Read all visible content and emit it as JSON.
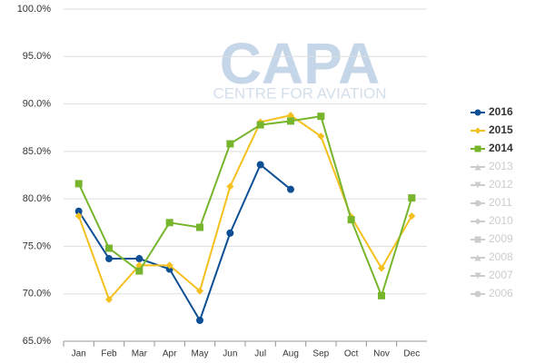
{
  "chart_data": {
    "type": "line",
    "watermark": {
      "title": "CAPA",
      "subtitle": "CENTRE FOR AVIATION"
    },
    "categories": [
      "Jan",
      "Feb",
      "Mar",
      "Apr",
      "May",
      "Jun",
      "Jul",
      "Aug",
      "Sep",
      "Oct",
      "Nov",
      "Dec"
    ],
    "ylim": [
      65,
      100
    ],
    "yticks": [
      {
        "value": 65,
        "label": "65.0%"
      },
      {
        "value": 70,
        "label": "70.0%"
      },
      {
        "value": 75,
        "label": "75.0%"
      },
      {
        "value": 80,
        "label": "80.0%"
      },
      {
        "value": 85,
        "label": "85.0%"
      },
      {
        "value": 90,
        "label": "90.0%"
      },
      {
        "value": 95,
        "label": "95.0%"
      },
      {
        "value": 100,
        "label": "100.0%"
      }
    ],
    "grid": true,
    "legend": "right",
    "series": [
      {
        "name": "2016",
        "color": "#0d4f94",
        "marker": "circle",
        "visible": true,
        "values": [
          78.7,
          73.7,
          73.7,
          72.6,
          67.2,
          76.4,
          83.6,
          81.0,
          null,
          null,
          null,
          null
        ]
      },
      {
        "name": "2015",
        "color": "#f5c01d",
        "marker": "diamond",
        "visible": true,
        "values": [
          78.2,
          69.4,
          73.0,
          73.0,
          70.3,
          81.3,
          88.1,
          88.8,
          86.6,
          78.1,
          72.7,
          78.2
        ]
      },
      {
        "name": "2014",
        "color": "#76b52c",
        "marker": "square",
        "visible": true,
        "values": [
          81.6,
          74.8,
          72.4,
          77.5,
          77.0,
          85.8,
          87.8,
          88.2,
          88.7,
          77.8,
          69.8,
          80.1
        ]
      },
      {
        "name": "2013",
        "color": "#cccccc",
        "marker": "triangle",
        "visible": false,
        "values": [
          null,
          null,
          null,
          null,
          null,
          null,
          null,
          null,
          null,
          null,
          null,
          null
        ]
      },
      {
        "name": "2012",
        "color": "#cccccc",
        "marker": "triangle-down",
        "visible": false,
        "values": [
          null,
          null,
          null,
          null,
          null,
          null,
          null,
          null,
          null,
          null,
          null,
          null
        ]
      },
      {
        "name": "2011",
        "color": "#cccccc",
        "marker": "circle",
        "visible": false,
        "values": [
          null,
          null,
          null,
          null,
          null,
          null,
          null,
          null,
          null,
          null,
          null,
          null
        ]
      },
      {
        "name": "2010",
        "color": "#cccccc",
        "marker": "diamond",
        "visible": false,
        "values": [
          null,
          null,
          null,
          null,
          null,
          null,
          null,
          null,
          null,
          null,
          null,
          null
        ]
      },
      {
        "name": "2009",
        "color": "#cccccc",
        "marker": "square",
        "visible": false,
        "values": [
          null,
          null,
          null,
          null,
          null,
          null,
          null,
          null,
          null,
          null,
          null,
          null
        ]
      },
      {
        "name": "2008",
        "color": "#cccccc",
        "marker": "triangle",
        "visible": false,
        "values": [
          null,
          null,
          null,
          null,
          null,
          null,
          null,
          null,
          null,
          null,
          null,
          null
        ]
      },
      {
        "name": "2007",
        "color": "#cccccc",
        "marker": "triangle-down",
        "visible": false,
        "values": [
          null,
          null,
          null,
          null,
          null,
          null,
          null,
          null,
          null,
          null,
          null,
          null
        ]
      },
      {
        "name": "2006",
        "color": "#cccccc",
        "marker": "circle",
        "visible": false,
        "values": [
          null,
          null,
          null,
          null,
          null,
          null,
          null,
          null,
          null,
          null,
          null,
          null
        ]
      }
    ]
  }
}
